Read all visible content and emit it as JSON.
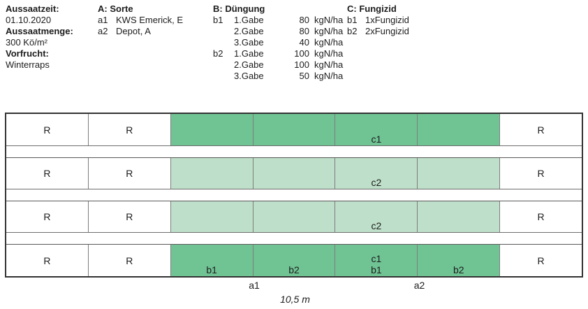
{
  "legend": {
    "info": {
      "rows": [
        {
          "label": "Aussaatzeit:",
          "value": "01.10.2020"
        },
        {
          "label": "Aussaatmenge:",
          "value": "300 Kö/m²"
        },
        {
          "label": "Vorfrucht:",
          "value": "Winterraps"
        }
      ]
    },
    "factor_a": {
      "title": "A: Sorte",
      "items": [
        {
          "key": "a1",
          "value": "KWS Emerick, E"
        },
        {
          "key": "a2",
          "value": "Depot, A"
        }
      ]
    },
    "factor_b": {
      "title": "B: Düngung",
      "items": [
        {
          "key": "b1",
          "gabe": "1.Gabe",
          "amount": "80",
          "unit": "kgN/ha"
        },
        {
          "key": "",
          "gabe": "2.Gabe",
          "amount": "80",
          "unit": "kgN/ha"
        },
        {
          "key": "",
          "gabe": "3.Gabe",
          "amount": "40",
          "unit": "kgN/ha"
        },
        {
          "key": "b2",
          "gabe": "1.Gabe",
          "amount": "100",
          "unit": "kgN/ha"
        },
        {
          "key": "",
          "gabe": "2.Gabe",
          "amount": "100",
          "unit": "kgN/ha"
        },
        {
          "key": "",
          "gabe": "3.Gabe",
          "amount": "50",
          "unit": "kgN/ha"
        }
      ]
    },
    "factor_c": {
      "title": "C: Fungizid",
      "items": [
        {
          "key": "b1",
          "value": "1xFungizid"
        },
        {
          "key": "b2",
          "value": "2xFungizid"
        }
      ]
    }
  },
  "field": {
    "colors": {
      "treated_dark": "#70c494",
      "treated_light": "#bedfc9",
      "border": "#333333"
    },
    "rows": [
      {
        "cells": [
          {
            "fill": "white",
            "pos": "center",
            "lines": [
              "R"
            ]
          },
          {
            "fill": "white",
            "pos": "center",
            "lines": [
              "R"
            ]
          },
          {
            "fill": "dark",
            "pos": "bottom",
            "lines": []
          },
          {
            "fill": "dark",
            "pos": "bottom",
            "lines": []
          },
          {
            "fill": "dark",
            "pos": "bottom",
            "lines": [
              "c1"
            ]
          },
          {
            "fill": "dark",
            "pos": "bottom",
            "lines": []
          },
          {
            "fill": "white",
            "pos": "center",
            "lines": [
              "R"
            ]
          }
        ]
      },
      {
        "cells": [
          {
            "fill": "white",
            "pos": "center",
            "lines": [
              "R"
            ]
          },
          {
            "fill": "white",
            "pos": "center",
            "lines": [
              "R"
            ]
          },
          {
            "fill": "light",
            "pos": "bottom",
            "lines": []
          },
          {
            "fill": "light",
            "pos": "bottom",
            "lines": []
          },
          {
            "fill": "light",
            "pos": "bottom",
            "lines": [
              "c2"
            ]
          },
          {
            "fill": "light",
            "pos": "bottom",
            "lines": []
          },
          {
            "fill": "white",
            "pos": "center",
            "lines": [
              "R"
            ]
          }
        ]
      },
      {
        "cells": [
          {
            "fill": "white",
            "pos": "center",
            "lines": [
              "R"
            ]
          },
          {
            "fill": "white",
            "pos": "center",
            "lines": [
              "R"
            ]
          },
          {
            "fill": "light",
            "pos": "bottom",
            "lines": []
          },
          {
            "fill": "light",
            "pos": "bottom",
            "lines": []
          },
          {
            "fill": "light",
            "pos": "bottom",
            "lines": [
              "c2"
            ]
          },
          {
            "fill": "light",
            "pos": "bottom",
            "lines": []
          },
          {
            "fill": "white",
            "pos": "center",
            "lines": [
              "R"
            ]
          }
        ]
      },
      {
        "cells": [
          {
            "fill": "white",
            "pos": "center",
            "lines": [
              "R"
            ]
          },
          {
            "fill": "white",
            "pos": "center",
            "lines": [
              "R"
            ]
          },
          {
            "fill": "dark",
            "pos": "bottom",
            "lines": [
              "b1"
            ]
          },
          {
            "fill": "dark",
            "pos": "bottom",
            "lines": [
              "b2"
            ]
          },
          {
            "fill": "dark",
            "pos": "bottom",
            "lines": [
              "c1",
              "b1"
            ]
          },
          {
            "fill": "dark",
            "pos": "bottom",
            "lines": [
              "b2"
            ]
          },
          {
            "fill": "white",
            "pos": "center",
            "lines": [
              "R"
            ]
          }
        ]
      }
    ],
    "bottom_labels": {
      "a1": "a1",
      "a2": "a2"
    },
    "scale_label": "10,5 m"
  }
}
